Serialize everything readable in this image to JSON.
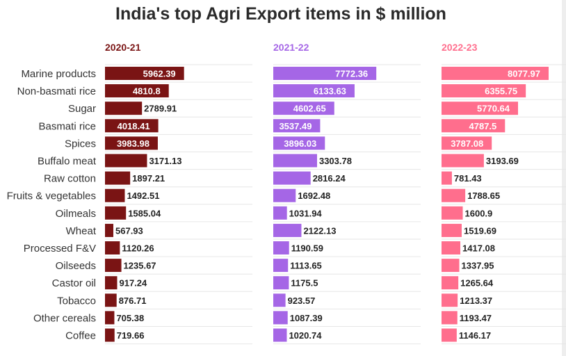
{
  "title": "India's top Agri Export items in $ million",
  "chart_data": {
    "type": "bar",
    "title": "India's top Agri Export items in $ million",
    "categories": [
      "Marine products",
      "Non-basmati rice",
      "Sugar",
      "Basmati rice",
      "Spices",
      "Buffalo meat",
      "Raw cotton",
      "Fruits & vegetables",
      "Oilmeals",
      "Wheat",
      "Processed F&V",
      "Oilseeds",
      "Castor oil",
      "Tobacco",
      "Other cereals",
      "Coffee"
    ],
    "series": [
      {
        "name": "2020-21",
        "color": "#7a1414",
        "values": [
          5962.39,
          4810.8,
          2789.91,
          4018.41,
          3983.98,
          3171.13,
          1897.21,
          1492.51,
          1585.04,
          567.93,
          1120.26,
          1235.67,
          917.24,
          876.71,
          705.38,
          719.66
        ]
      },
      {
        "name": "2021-22",
        "color": "#a566e6",
        "values": [
          7772.36,
          6133.63,
          4602.65,
          3537.49,
          3896.03,
          3303.78,
          2816.24,
          1692.48,
          1031.94,
          2122.13,
          1190.59,
          1113.65,
          1175.5,
          923.57,
          1087.39,
          1020.74
        ]
      },
      {
        "name": "2022-23",
        "color": "#ff6e8d",
        "values": [
          8077.97,
          6355.75,
          5770.64,
          4787.5,
          3787.08,
          3193.69,
          781.43,
          1788.65,
          1600.9,
          1519.69,
          1417.08,
          1337.95,
          1265.64,
          1213.37,
          1193.47,
          1146.17
        ]
      }
    ],
    "xlim": [
      0,
      8100
    ],
    "grid": true
  }
}
